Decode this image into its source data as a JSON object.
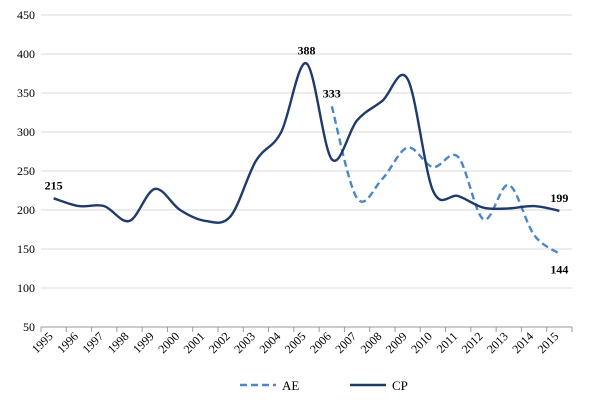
{
  "chart_data": {
    "type": "line",
    "categories": [
      "1995",
      "1996",
      "1997",
      "1998",
      "1999",
      "2000",
      "2001",
      "2002",
      "2003",
      "2004",
      "2005",
      "2006",
      "2007",
      "2008",
      "2009",
      "2010",
      "2011",
      "2012",
      "2013",
      "2014",
      "2015"
    ],
    "ylim": [
      50,
      450
    ],
    "yticks": [
      50,
      100,
      150,
      200,
      250,
      300,
      350,
      400,
      450
    ],
    "grid": true,
    "legend": "bottom",
    "series": [
      {
        "name": "AE",
        "color": "#4a86c8",
        "style": "dashed",
        "values": [
          null,
          null,
          null,
          null,
          null,
          null,
          null,
          null,
          null,
          null,
          null,
          333,
          215,
          240,
          280,
          255,
          268,
          188,
          232,
          168,
          144
        ]
      },
      {
        "name": "CP",
        "color": "#1f3a6b",
        "style": "solid",
        "values": [
          215,
          205,
          205,
          186,
          227,
          200,
          186,
          192,
          263,
          300,
          388,
          265,
          315,
          340,
          368,
          225,
          218,
          203,
          202,
          205,
          199
        ]
      }
    ],
    "data_labels": [
      {
        "series": "CP",
        "index": 0,
        "text": "215",
        "pos": "above"
      },
      {
        "series": "CP",
        "index": 10,
        "text": "388",
        "pos": "above"
      },
      {
        "series": "AE",
        "index": 11,
        "text": "333",
        "pos": "above"
      },
      {
        "series": "CP",
        "index": 20,
        "text": "199",
        "pos": "above"
      },
      {
        "series": "AE",
        "index": 20,
        "text": "144",
        "pos": "below"
      }
    ]
  }
}
